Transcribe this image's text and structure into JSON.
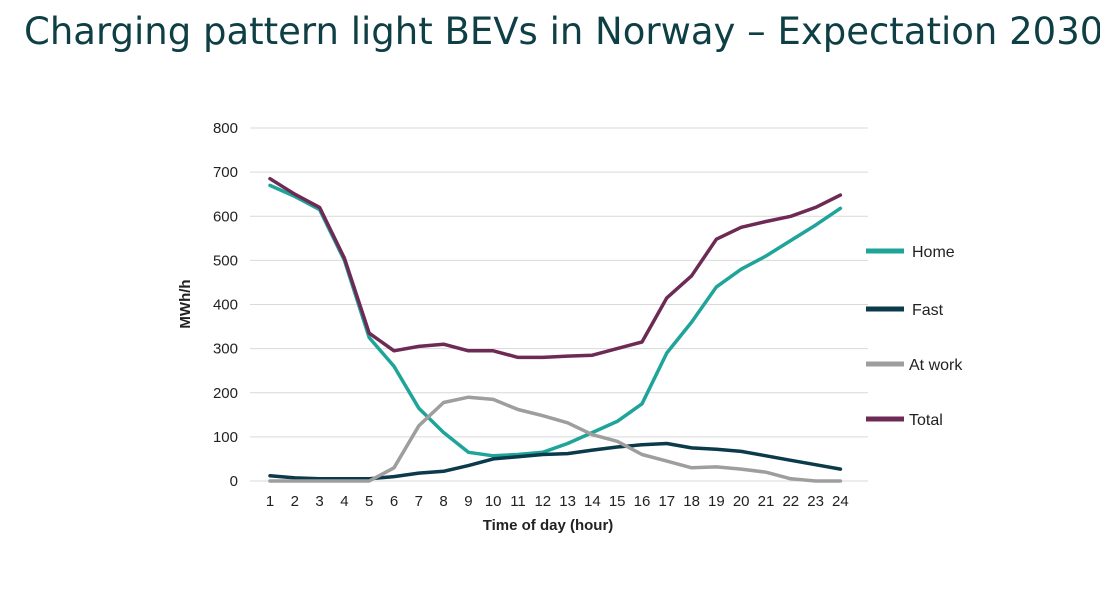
{
  "slide": {
    "title": "Charging pattern light BEVs in Norway – Expectation 2030"
  },
  "chart_data": {
    "type": "line",
    "title": "",
    "xlabel": "Time of day (hour)",
    "ylabel": "MWh/h",
    "x": [
      1,
      2,
      3,
      4,
      5,
      6,
      7,
      8,
      9,
      10,
      11,
      12,
      13,
      14,
      15,
      16,
      17,
      18,
      19,
      20,
      21,
      22,
      23,
      24
    ],
    "ylim": [
      0,
      800
    ],
    "yticks": [
      0,
      100,
      200,
      300,
      400,
      500,
      600,
      700,
      800
    ],
    "grid": "horizontal",
    "legend_position": "right",
    "series": [
      {
        "name": "Home",
        "color": "#1fa49a",
        "values": [
          670,
          645,
          615,
          500,
          325,
          260,
          165,
          110,
          65,
          57,
          60,
          65,
          85,
          110,
          135,
          175,
          290,
          360,
          440,
          480,
          510,
          545,
          580,
          618
        ]
      },
      {
        "name": "Fast",
        "color": "#0b3a4a",
        "values": [
          12,
          7,
          5,
          5,
          5,
          10,
          18,
          22,
          35,
          50,
          55,
          60,
          62,
          70,
          77,
          82,
          85,
          75,
          72,
          67,
          57,
          47,
          37,
          27
        ]
      },
      {
        "name": "At work",
        "color": "#9e9e9e",
        "values": [
          0,
          0,
          0,
          0,
          0,
          30,
          125,
          178,
          190,
          185,
          162,
          148,
          132,
          105,
          90,
          60,
          45,
          30,
          32,
          27,
          20,
          5,
          0,
          0
        ]
      },
      {
        "name": "Total",
        "color": "#6d2a55",
        "values": [
          685,
          650,
          620,
          505,
          335,
          295,
          305,
          310,
          295,
          295,
          280,
          280,
          283,
          285,
          300,
          315,
          415,
          465,
          548,
          575,
          588,
          600,
          620,
          648
        ]
      }
    ]
  }
}
